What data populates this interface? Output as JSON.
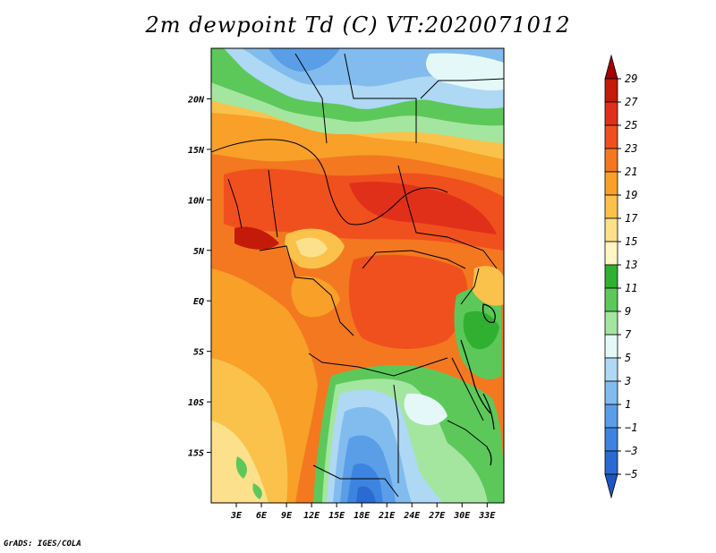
{
  "title": "2m dewpoint Td (C) VT:2020071012",
  "credit": "GrADS: IGES/COLA",
  "map": {
    "variable": "2m dewpoint",
    "units": "C",
    "lon_range": [
      0,
      35
    ],
    "lat_range": [
      -20,
      25
    ],
    "lon_ticks": [
      {
        "value": 3,
        "label": "3E"
      },
      {
        "value": 6,
        "label": "6E"
      },
      {
        "value": 9,
        "label": "9E"
      },
      {
        "value": 12,
        "label": "12E"
      },
      {
        "value": 15,
        "label": "15E"
      },
      {
        "value": 18,
        "label": "18E"
      },
      {
        "value": 21,
        "label": "21E"
      },
      {
        "value": 24,
        "label": "24E"
      },
      {
        "value": 27,
        "label": "27E"
      },
      {
        "value": 30,
        "label": "30E"
      },
      {
        "value": 33,
        "label": "33E"
      }
    ],
    "lat_ticks": [
      {
        "value": 20,
        "label": "20N"
      },
      {
        "value": 15,
        "label": "15N"
      },
      {
        "value": 10,
        "label": "10N"
      },
      {
        "value": 5,
        "label": "5N"
      },
      {
        "value": 0,
        "label": "EQ"
      },
      {
        "value": -5,
        "label": "5S"
      },
      {
        "value": -10,
        "label": "10S"
      },
      {
        "value": -15,
        "label": "15S"
      }
    ]
  },
  "colorbar": {
    "levels": [
      {
        "label": "29",
        "color": "#a50000"
      },
      {
        "label": "27",
        "color": "#c41a0a"
      },
      {
        "label": "25",
        "color": "#e1301a"
      },
      {
        "label": "23",
        "color": "#f0501e"
      },
      {
        "label": "21",
        "color": "#f37820"
      },
      {
        "label": "19",
        "color": "#f8a028"
      },
      {
        "label": "17",
        "color": "#fac24a"
      },
      {
        "label": "15",
        "color": "#fde08c"
      },
      {
        "label": "13",
        "color": "#fff6c4"
      },
      {
        "label": "11",
        "color": "#30b030"
      },
      {
        "label": "9",
        "color": "#5cc85a"
      },
      {
        "label": "7",
        "color": "#a4e6a0"
      },
      {
        "label": "5",
        "color": "#e4f8f8"
      },
      {
        "label": "3",
        "color": "#aed8f4"
      },
      {
        "label": "1",
        "color": "#82bcee"
      },
      {
        "label": "−1",
        "color": "#5a9ee8"
      },
      {
        "label": "−3",
        "color": "#3c84e0"
      },
      {
        "label": "−5",
        "color": "#2a6ad2"
      },
      {
        "label": "",
        "color": "#1e56c0"
      }
    ]
  }
}
